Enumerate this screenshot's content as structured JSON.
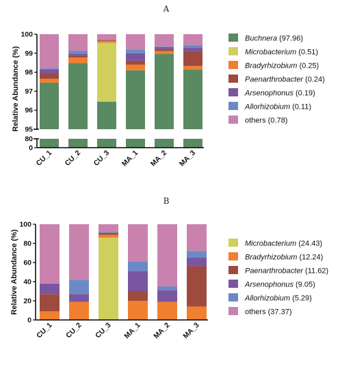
{
  "chart_data": [
    {
      "panel": "A",
      "type": "bar",
      "stacked": true,
      "ylabel": "Relative Abundance (%)",
      "axis_break": true,
      "upper_range": [
        95,
        100
      ],
      "lower_range": [
        0,
        80
      ],
      "upper_ticks": [
        "95",
        "96",
        "97",
        "98",
        "99",
        "100"
      ],
      "lower_ticks": [
        "0",
        "80"
      ],
      "categories": [
        "CU_1",
        "CU_2",
        "CU_3",
        "MA_1",
        "MA_2",
        "MA_3"
      ],
      "series": [
        {
          "name": "Buchnera",
          "legend": "(97.96)",
          "color": "#5a8a62",
          "values": [
            97.45,
            98.47,
            96.45,
            98.1,
            98.97,
            98.13
          ]
        },
        {
          "name": "Microbacterium",
          "legend": "(0.51)",
          "color": "#cfcf5e",
          "values": [
            0.0,
            0.0,
            3.1,
            0.0,
            0.0,
            0.0
          ]
        },
        {
          "name": "Bradyrhizobium",
          "legend": "(0.25)",
          "color": "#f08030",
          "values": [
            0.2,
            0.3,
            0.1,
            0.3,
            0.15,
            0.2
          ]
        },
        {
          "name": "Paenarthrobacter",
          "legend": "(0.24)",
          "color": "#9e4a3e",
          "values": [
            0.3,
            0.1,
            0.05,
            0.2,
            0.1,
            0.75
          ]
        },
        {
          "name": "Arsenophonus",
          "legend": "(0.19)",
          "color": "#7a55a0",
          "values": [
            0.2,
            0.1,
            0.0,
            0.4,
            0.1,
            0.2
          ]
        },
        {
          "name": "Allorhizobium",
          "legend": "(0.11)",
          "color": "#6b8ac5",
          "values": [
            0.05,
            0.15,
            0.02,
            0.2,
            0.03,
            0.15
          ]
        },
        {
          "name": "others",
          "legend": "(0.78)",
          "color": "#c982ad",
          "values": [
            1.8,
            0.88,
            0.28,
            0.8,
            0.65,
            0.57
          ]
        }
      ]
    },
    {
      "panel": "B",
      "type": "bar",
      "stacked": true,
      "ylabel": "Relative Abundance (%)",
      "ylim": [
        0,
        100
      ],
      "yticks": [
        "0",
        "20",
        "40",
        "60",
        "80",
        "100"
      ],
      "categories": [
        "CU_1",
        "CU_2",
        "CU_3",
        "MA_1",
        "MA_2",
        "MA_3"
      ],
      "series": [
        {
          "name": "Microbacterium",
          "legend": "(24.43)",
          "color": "#cfcf5e",
          "values": [
            0,
            0,
            86,
            0,
            0,
            0
          ]
        },
        {
          "name": "Bradyrhizobium",
          "legend": "(12.24)",
          "color": "#f08030",
          "values": [
            9,
            19,
            3,
            20,
            19,
            14
          ]
        },
        {
          "name": "Paenarthrobacter",
          "legend": "(11.62)",
          "color": "#9e4a3e",
          "values": [
            18,
            0,
            2,
            10,
            0,
            42
          ]
        },
        {
          "name": "Arsenophonus",
          "legend": "(9.05)",
          "color": "#7a55a0",
          "values": [
            11,
            8,
            0,
            21,
            12,
            9
          ]
        },
        {
          "name": "Allorhizobium",
          "legend": "(5.29)",
          "color": "#6b8ac5",
          "values": [
            0,
            15,
            1,
            10,
            4,
            7
          ]
        },
        {
          "name": "others",
          "legend": "(37.37)",
          "color": "#c982ad",
          "values": [
            62,
            58,
            8,
            39,
            65,
            28
          ]
        }
      ]
    }
  ]
}
